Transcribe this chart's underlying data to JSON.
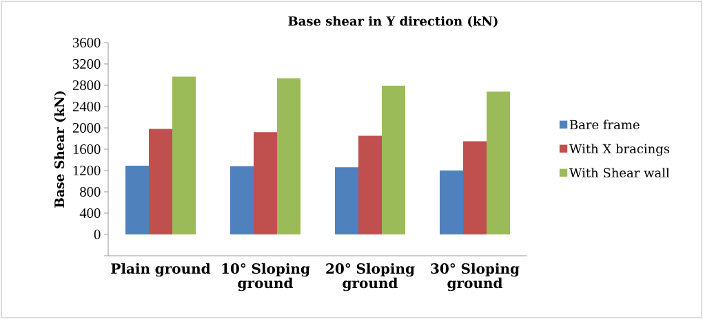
{
  "chart_data": {
    "type": "bar",
    "title": "Base shear in Y direction (kN)",
    "ylabel": "Base Shear (kN)",
    "categories": [
      "Plain ground",
      "10° Sloping ground",
      "20° Sloping ground",
      "30° Sloping ground"
    ],
    "series": [
      {
        "name": "Bare frame",
        "color": "#4f81bd",
        "values": [
          1290,
          1280,
          1260,
          1200
        ]
      },
      {
        "name": "With X bracings",
        "color": "#c0504d",
        "values": [
          1980,
          1920,
          1850,
          1750
        ]
      },
      {
        "name": "With Shear wall",
        "color": "#9bbb59",
        "values": [
          2960,
          2930,
          2790,
          2680
        ]
      }
    ],
    "ylim": [
      -400,
      3600
    ],
    "yticks": [
      {
        "value": -400,
        "label": null
      },
      0,
      400,
      800,
      1200,
      1600,
      2000,
      2400,
      2800,
      3200,
      3600
    ],
    "grid": false,
    "legend": "right"
  }
}
